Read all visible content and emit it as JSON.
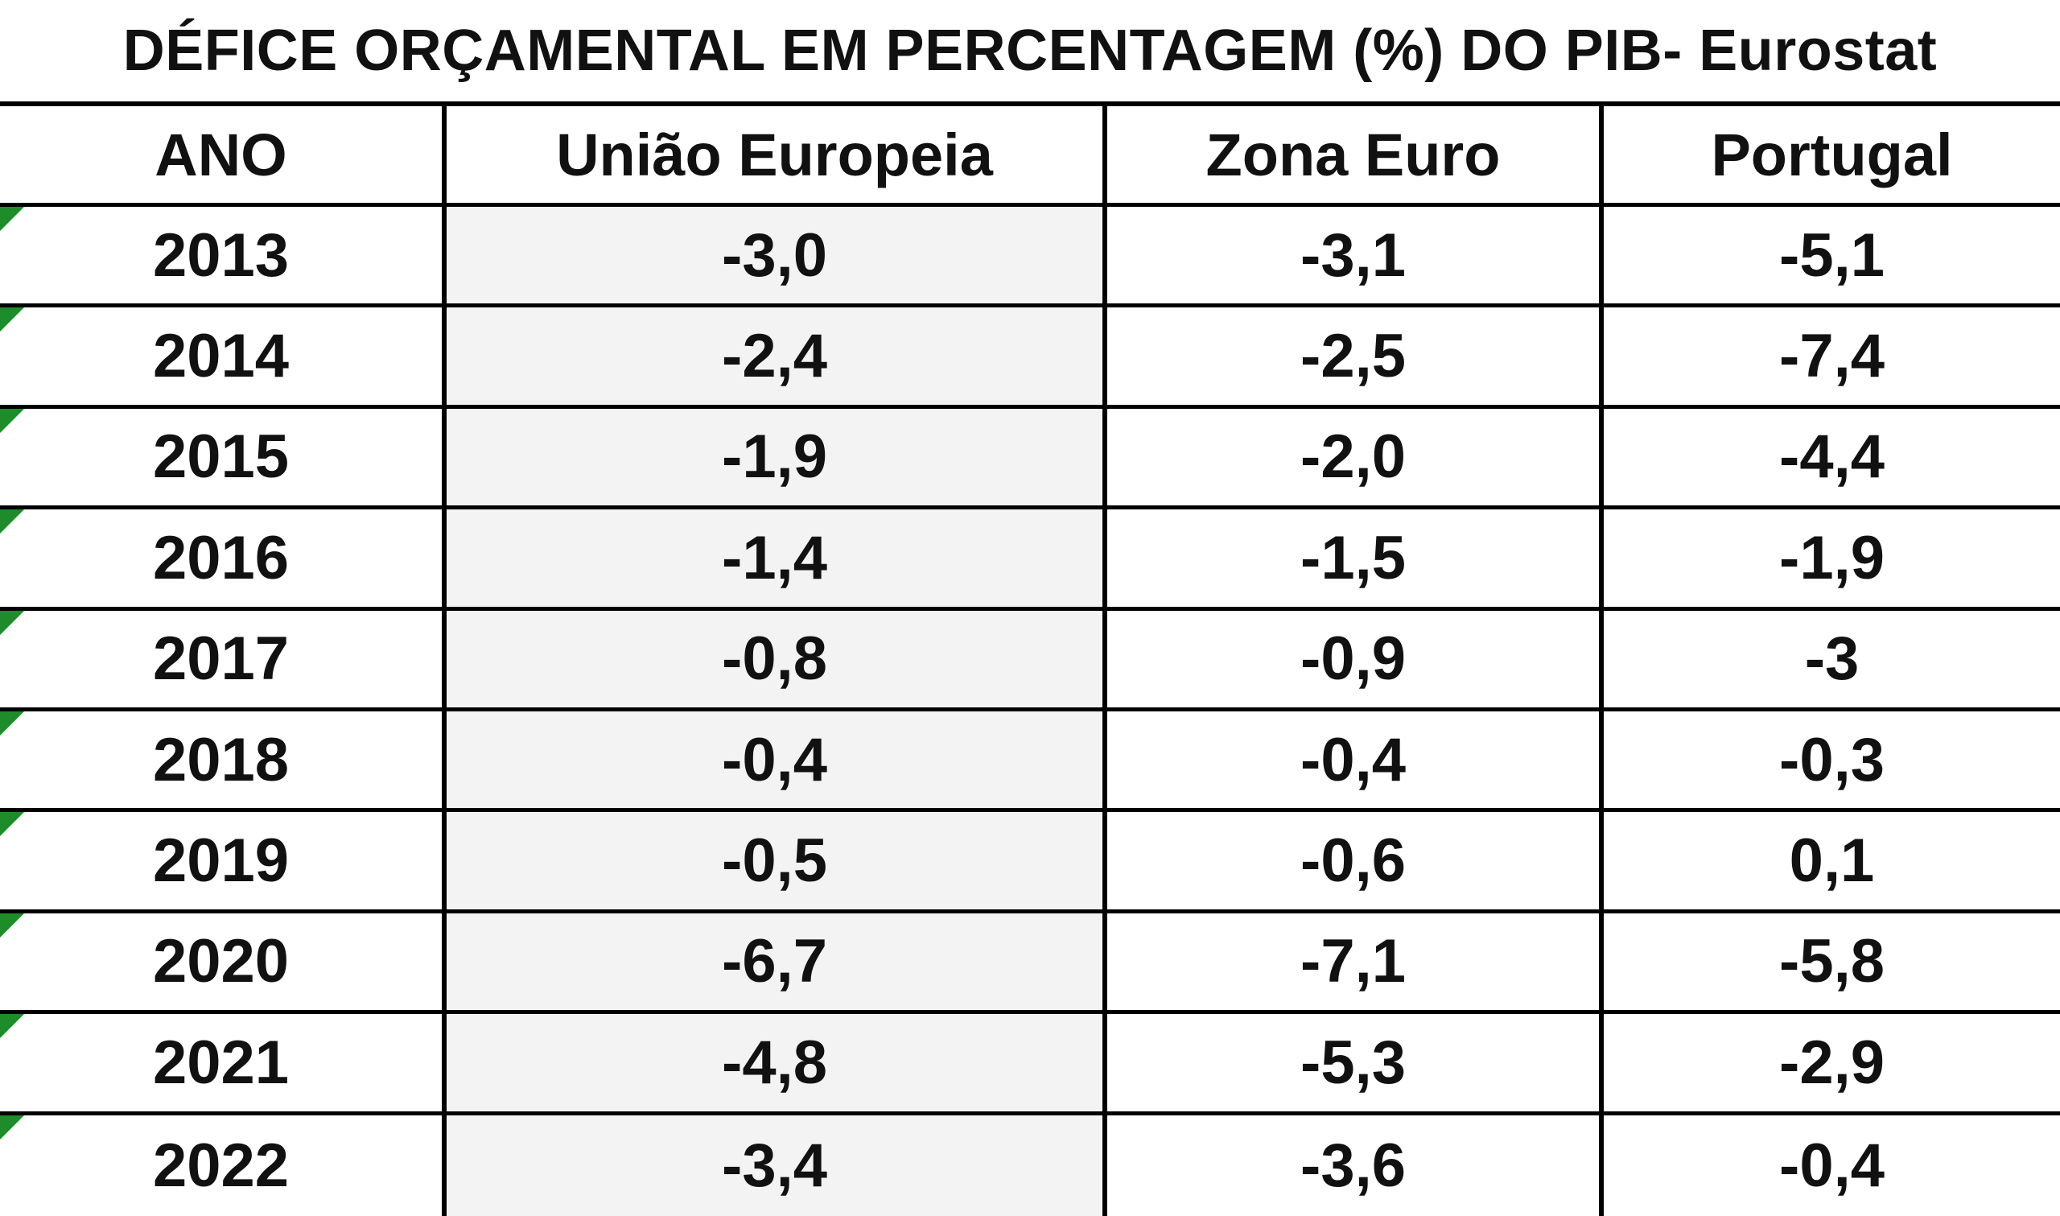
{
  "chart_data": {
    "type": "table",
    "title": "DÉFICE ORÇAMENTAL EM PERCENTAGEM (%) DO PIB- Eurostat",
    "columns": [
      "ANO",
      "União Europeia",
      "Zona Euro",
      "Portugal"
    ],
    "rows": [
      [
        "2013",
        "-3,0",
        "-3,1",
        "-5,1"
      ],
      [
        "2014",
        "-2,4",
        "-2,5",
        "-7,4"
      ],
      [
        "2015",
        "-1,9",
        "-2,0",
        "-4,4"
      ],
      [
        "2016",
        "-1,4",
        "-1,5",
        "-1,9"
      ],
      [
        "2017",
        "-0,8",
        "-0,9",
        "-3"
      ],
      [
        "2018",
        "-0,4",
        "-0,4",
        "-0,3"
      ],
      [
        "2019",
        "-0,5",
        "-0,6",
        "0,1"
      ],
      [
        "2020",
        "-6,7",
        "-7,1",
        "-5,8"
      ],
      [
        "2021",
        "-4,8",
        "-5,3",
        "-2,9"
      ],
      [
        "2022",
        "-3,4",
        "-3,6",
        "-0,4"
      ]
    ]
  },
  "colors": {
    "shaded_column": "#f3f3f3",
    "error_marker": "#1e8c2a"
  }
}
